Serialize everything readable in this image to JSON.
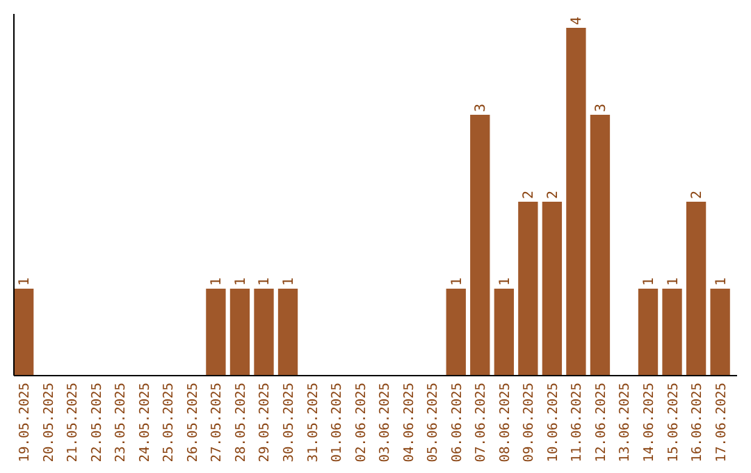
{
  "chart_data": {
    "type": "bar",
    "categories": [
      "19.05.2025",
      "20.05.2025",
      "21.05.2025",
      "22.05.2025",
      "23.05.2025",
      "24.05.2025",
      "25.05.2025",
      "26.05.2025",
      "27.05.2025",
      "28.05.2025",
      "29.05.2025",
      "30.05.2025",
      "31.05.2025",
      "01.06.2025",
      "02.06.2025",
      "03.06.2025",
      "04.06.2025",
      "05.06.2025",
      "06.06.2025",
      "07.06.2025",
      "08.06.2025",
      "09.06.2025",
      "10.06.2025",
      "11.06.2025",
      "12.06.2025",
      "13.06.2025",
      "14.06.2025",
      "15.06.2025",
      "16.06.2025",
      "17.06.2025"
    ],
    "values": [
      1,
      0,
      0,
      0,
      0,
      0,
      0,
      0,
      1,
      1,
      1,
      1,
      0,
      0,
      0,
      0,
      0,
      0,
      1,
      3,
      1,
      2,
      2,
      4,
      3,
      0,
      1,
      1,
      2,
      1
    ],
    "value_labels": [
      "1",
      null,
      null,
      null,
      null,
      null,
      null,
      null,
      "1",
      "1",
      "1",
      "1",
      null,
      null,
      null,
      null,
      null,
      null,
      "1",
      "3",
      "1",
      "2",
      "2",
      "4",
      "3",
      null,
      "1",
      "1",
      "2",
      "1"
    ],
    "color": "#a0582a",
    "grid": false
  }
}
